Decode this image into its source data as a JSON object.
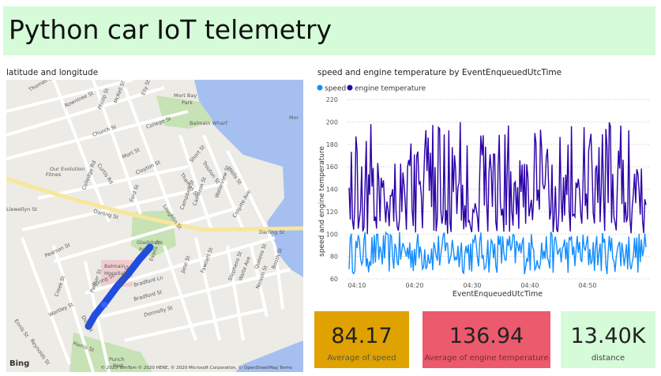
{
  "report": {
    "title": "Python car IoT telemetry"
  },
  "map": {
    "title": "latitude and longitude",
    "attribution": "© 2020 TomTom © 2020 HERE, © 2020 Microsoft Corporation, © OpenStreetMap  Terms",
    "logo": "Bing",
    "labels": [
      "Thomas St",
      "Rowntree St",
      "Phillip St",
      "McKell St",
      "Elly St",
      "Mort Bay",
      "Park",
      "Balmain Wharf",
      "Mor",
      "Church St",
      "College St",
      "Short St",
      "Our Evolution",
      "Fitnes",
      "Curtis Rd",
      "Mort St",
      "Clayton St",
      "Thames St",
      "Trouton St",
      "Wells St",
      "Colledge Rd",
      "Llewellyn St",
      "Darling St",
      "Ford St",
      "Loughlin St",
      "Campbell St",
      "Cameron St",
      "Waterview St",
      "Colgate Ave",
      "Gladstone",
      "Park",
      "Darling St",
      "Balmain",
      "Hospital",
      "Evans St",
      "Smith St",
      "Spring St",
      "Palmer St",
      "Jane St",
      "Fawcett St",
      "Stephens St",
      "Queens St",
      "Booth St",
      "Creek St",
      "Bradford Ln",
      "Bradford St",
      "Waite Ave",
      "Nelson St",
      "Wortley St",
      "Dick St",
      "Donnelly St",
      "Harris St",
      "Reynolds St",
      "Ennis St",
      "Pearson St",
      "Punch",
      "Park"
    ]
  },
  "line_chart": {
    "title": "speed and engine temperature by EventEnqueuedUtcTime",
    "legend": [
      "speed",
      "engine temperature"
    ],
    "colors": {
      "speed": "#118dff",
      "engine_temperature": "#2b00a8"
    },
    "x_label": "EventEnqueuedUtcTime",
    "y_label": "speed and engine temperature"
  },
  "chart_data": {
    "type": "line",
    "xlabel": "EventEnqueuedUtcTime",
    "ylabel": "speed and engine temperature",
    "x_ticks": [
      "04:10",
      "04:20",
      "04:30",
      "04:40",
      "04:50"
    ],
    "y_ticks": [
      60,
      80,
      100,
      120,
      140,
      160,
      180,
      200,
      220
    ],
    "ylim": [
      60,
      220
    ],
    "legend_position": "top-left",
    "grid": true,
    "series": [
      {
        "name": "speed",
        "color": "#118dff",
        "min": 64,
        "max": 102,
        "mean": 84.17,
        "points": 260
      },
      {
        "name": "engine temperature",
        "color": "#2b00a8",
        "min": 100,
        "max": 200,
        "mean": 136.94,
        "points": 260
      }
    ]
  },
  "cards": [
    {
      "value": "84.17",
      "label": "Average of speed",
      "bg": "#e0a200",
      "label_color": "#555555"
    },
    {
      "value": "136.94",
      "label": "Average of engine temperature",
      "bg": "#ec5a6e",
      "label_color": "#7a2a33"
    },
    {
      "value": "13.40K",
      "label": "distance",
      "bg": "#d5fbd9",
      "label_color": "#444444"
    }
  ]
}
